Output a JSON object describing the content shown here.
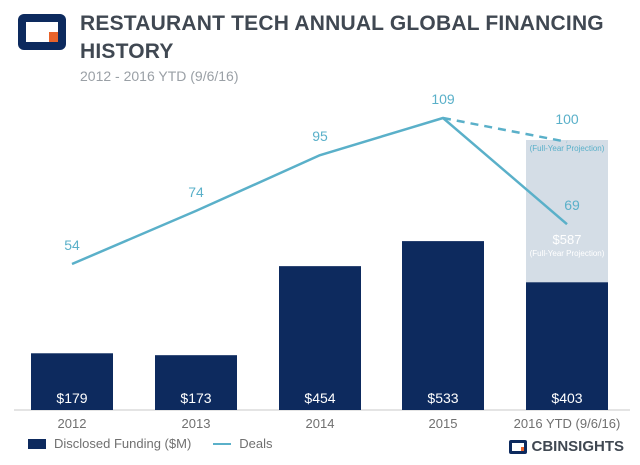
{
  "header": {
    "title": "RESTAURANT TECH ANNUAL GLOBAL FINANCING HISTORY",
    "subtitle": "2012 - 2016 YTD (9/6/16)"
  },
  "brand": {
    "name": "CBINSIGHTS"
  },
  "legend": {
    "bars": "Disclosed Funding ($M)",
    "line": "Deals"
  },
  "colors": {
    "bar": "#0d2a5e",
    "projection": "#d4dde6",
    "line": "#5ab0c9",
    "axis": "#c8c8c8",
    "text": "#707070"
  },
  "chart_data": {
    "type": "bar",
    "categories": [
      "2012",
      "2013",
      "2014",
      "2015",
      "2016 YTD (9/6/16)"
    ],
    "series": [
      {
        "name": "Disclosed Funding ($M)",
        "type": "bar",
        "values": [
          179,
          173,
          454,
          533,
          403
        ],
        "labels": [
          "$179",
          "$173",
          "$454",
          "$533",
          "$403"
        ]
      },
      {
        "name": "Deals",
        "type": "line",
        "values": [
          54,
          74,
          95,
          109,
          69
        ]
      }
    ],
    "projection": {
      "funding_value": 587,
      "funding_label": "$587",
      "funding_note": "(Full-Year Projection)",
      "deals_value": 100,
      "deals_label": "100",
      "deals_note": "(Full-Year Projection)"
    },
    "ylim_funding": [
      0,
      780
    ],
    "ylim_deals": [
      0,
      120
    ],
    "grid": false,
    "legend_position": "bottom-left"
  }
}
